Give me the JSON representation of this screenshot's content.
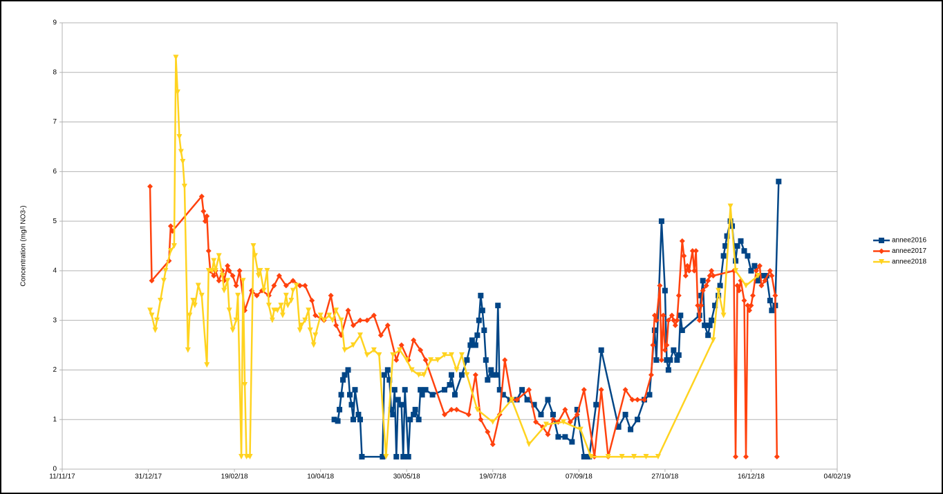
{
  "chart_data": {
    "type": "line",
    "y_label": "Concentration (mg/l NO3-)",
    "xlim": [
      "11/11/17",
      "04/02/19"
    ],
    "xticks": [
      "11/11/17",
      "31/12/17",
      "19/02/18",
      "10/04/18",
      "30/05/18",
      "19/07/18",
      "07/09/18",
      "27/10/18",
      "16/12/18",
      "04/02/19"
    ],
    "ylim": [
      0,
      9
    ],
    "yticks": [
      0,
      1,
      2,
      3,
      4,
      5,
      6,
      7,
      8,
      9
    ],
    "grid": true,
    "legend": "right",
    "series": [
      {
        "name": "annee2016",
        "color": "#004586",
        "marker": "square",
        "x": [
          "18/04/18",
          "20/04/18",
          "21/04/18",
          "22/04/18",
          "23/04/18",
          "24/04/18",
          "26/04/18",
          "27/04/18",
          "28/04/18",
          "29/04/18",
          "30/04/18",
          "02/05/18",
          "03/05/18",
          "04/05/18",
          "16/05/18",
          "17/05/18",
          "19/05/18",
          "20/05/18",
          "21/05/18",
          "22/05/18",
          "23/05/18",
          "24/05/18",
          "25/05/18",
          "27/05/18",
          "28/05/18",
          "29/05/18",
          "31/05/18",
          "01/06/18",
          "03/06/18",
          "04/06/18",
          "06/06/18",
          "07/06/18",
          "08/06/18",
          "10/06/18",
          "14/06/18",
          "21/06/18",
          "24/06/18",
          "25/06/18",
          "27/06/18",
          "01/07/18",
          "04/07/18",
          "06/07/18",
          "07/07/18",
          "09/07/18",
          "10/07/18",
          "11/07/18",
          "12/07/18",
          "13/07/18",
          "14/07/18",
          "15/07/18",
          "16/07/18",
          "18/07/18",
          "19/07/18",
          "21/07/18",
          "22/07/18",
          "23/07/18",
          "25/07/18",
          "29/07/18",
          "02/08/18",
          "05/08/18",
          "08/08/18",
          "12/08/18",
          "16/08/18",
          "20/08/18",
          "23/08/18",
          "26/08/18",
          "30/08/18",
          "03/09/18",
          "06/09/18",
          "10/09/18",
          "13/09/18",
          "17/09/18",
          "20/09/18",
          "30/09/18",
          "04/10/18",
          "07/10/18",
          "11/10/18",
          "15/10/18",
          "18/10/18",
          "21/10/18",
          "22/10/18",
          "25/10/18",
          "27/10/18",
          "28/10/18",
          "29/10/18",
          "30/10/18",
          "01/11/18",
          "03/11/18",
          "04/11/18",
          "05/11/18",
          "06/11/18",
          "16/11/18",
          "17/11/18",
          "18/11/18",
          "19/11/18",
          "21/11/18",
          "22/11/18",
          "23/11/18",
          "25/11/18",
          "27/11/18",
          "28/11/18",
          "30/11/18",
          "01/12/18",
          "02/12/18",
          "04/12/18",
          "05/12/18",
          "07/12/18",
          "08/12/18",
          "10/12/18",
          "12/12/18",
          "14/12/18",
          "16/12/18",
          "18/12/18",
          "20/12/18",
          "21/12/18",
          "23/12/18",
          "25/12/18",
          "27/12/18",
          "28/12/18",
          "30/12/18",
          "01/01/19"
        ],
        "values": [
          1.0,
          0.97,
          1.2,
          1.5,
          1.8,
          1.9,
          2.0,
          1.5,
          1.3,
          1.0,
          1.6,
          1.1,
          1.0,
          0.25,
          0.25,
          1.9,
          2.0,
          1.8,
          1.2,
          1.1,
          1.6,
          0.25,
          1.4,
          1.3,
          0.25,
          1.6,
          0.25,
          1.0,
          1.1,
          1.2,
          1.0,
          1.6,
          1.5,
          1.6,
          1.5,
          1.6,
          1.7,
          1.9,
          1.5,
          1.9,
          2.2,
          2.5,
          2.6,
          2.5,
          2.7,
          3.0,
          3.5,
          3.2,
          2.8,
          2.2,
          1.8,
          2.0,
          1.9,
          1.9,
          3.3,
          1.6,
          1.5,
          1.4,
          1.4,
          1.6,
          1.4,
          1.3,
          1.1,
          1.4,
          1.1,
          0.65,
          0.65,
          0.55,
          1.2,
          0.25,
          0.25,
          1.3,
          2.4,
          0.85,
          1.1,
          0.8,
          1.0,
          1.4,
          1.5,
          2.8,
          2.2,
          5.0,
          3.6,
          2.2,
          2.0,
          2.2,
          2.4,
          2.2,
          2.3,
          3.1,
          2.8,
          3.1,
          3.5,
          3.8,
          2.9,
          2.7,
          2.9,
          3.0,
          3.3,
          3.5,
          3.7,
          4.3,
          4.5,
          4.7,
          5.0,
          4.9,
          4.2,
          4.5,
          4.6,
          4.4,
          4.3,
          4.0,
          4.1,
          3.8,
          3.9,
          3.9,
          3.9,
          3.4,
          3.2,
          3.3,
          5.8
        ]
      },
      {
        "name": "annee2017",
        "color": "#ff420e",
        "marker": "diamond",
        "x": [
          "01/01/18",
          "02/01/18",
          "12/01/18",
          "13/01/18",
          "14/01/18",
          "31/01/18",
          "01/02/18",
          "02/02/18",
          "03/02/18",
          "04/02/18",
          "05/02/18",
          "07/02/18",
          "08/02/18",
          "10/02/18",
          "12/02/18",
          "13/02/18",
          "15/02/18",
          "16/02/18",
          "18/02/18",
          "20/02/18",
          "22/02/18",
          "25/02/18",
          "01/03/18",
          "04/03/18",
          "07/03/18",
          "11/03/18",
          "14/03/18",
          "17/03/18",
          "21/03/18",
          "25/03/18",
          "29/03/18",
          "01/04/18",
          "05/04/18",
          "07/04/18",
          "12/04/18",
          "16/04/18",
          "19/04/18",
          "22/04/18",
          "26/04/18",
          "29/04/18",
          "03/05/18",
          "07/05/18",
          "11/05/18",
          "15/05/18",
          "19/05/18",
          "24/05/18",
          "27/05/18",
          "31/05/18",
          "03/06/18",
          "07/06/18",
          "10/06/18",
          "21/06/18",
          "25/06/18",
          "28/06/18",
          "05/07/18",
          "09/07/18",
          "12/07/18",
          "16/07/18",
          "19/07/18",
          "23/07/18",
          "26/07/18",
          "30/07/18",
          "02/08/18",
          "09/08/18",
          "13/08/18",
          "17/08/18",
          "20/08/18",
          "23/08/18",
          "26/08/18",
          "30/08/18",
          "02/09/18",
          "06/09/18",
          "10/09/18",
          "16/09/18",
          "20/09/18",
          "24/09/18",
          "04/10/18",
          "08/10/18",
          "11/10/18",
          "15/10/18",
          "19/10/18",
          "20/10/18",
          "21/10/18",
          "22/10/18",
          "24/10/18",
          "25/10/18",
          "26/10/18",
          "27/10/18",
          "28/10/18",
          "29/10/18",
          "31/10/18",
          "01/11/18",
          "02/11/18",
          "03/11/18",
          "04/11/18",
          "06/11/18",
          "07/11/18",
          "08/11/18",
          "09/11/18",
          "10/11/18",
          "12/11/18",
          "13/11/18",
          "14/11/18",
          "15/11/18",
          "16/11/18",
          "17/11/18",
          "18/11/18",
          "20/11/18",
          "21/11/18",
          "22/11/18",
          "23/11/18",
          "24/11/18",
          "06/12/18",
          "07/12/18",
          "08/12/18",
          "09/12/18",
          "10/12/18",
          "12/12/18",
          "13/12/18",
          "14/12/18",
          "15/12/18",
          "16/12/18",
          "17/12/18",
          "19/12/18",
          "21/12/18",
          "22/12/18",
          "24/12/18",
          "27/12/18",
          "28/12/18",
          "30/12/18",
          "31/12/18"
        ],
        "values": [
          5.7,
          3.8,
          4.2,
          4.9,
          4.8,
          5.5,
          5.2,
          5.0,
          5.1,
          4.4,
          4.0,
          3.9,
          4.0,
          3.8,
          4.0,
          3.8,
          4.1,
          4.0,
          3.9,
          3.7,
          4.0,
          3.2,
          3.6,
          3.5,
          3.6,
          3.5,
          3.7,
          3.9,
          3.7,
          3.8,
          3.7,
          3.7,
          3.4,
          3.1,
          3.0,
          3.5,
          2.9,
          2.7,
          3.2,
          2.9,
          3.0,
          3.0,
          3.1,
          2.7,
          2.9,
          2.2,
          2.5,
          2.2,
          2.6,
          2.4,
          2.2,
          1.1,
          1.2,
          1.2,
          1.1,
          1.9,
          1.0,
          0.75,
          0.5,
          1.1,
          2.2,
          1.4,
          1.4,
          1.6,
          0.95,
          0.85,
          0.7,
          1.0,
          0.95,
          1.2,
          0.95,
          1.1,
          1.6,
          0.25,
          1.6,
          0.25,
          1.6,
          1.4,
          1.4,
          1.4,
          1.9,
          2.5,
          3.1,
          3.0,
          3.7,
          2.2,
          3.1,
          2.4,
          2.5,
          3.0,
          3.1,
          3.0,
          2.9,
          3.0,
          3.5,
          4.6,
          4.3,
          3.9,
          4.1,
          4.0,
          4.4,
          4.0,
          4.4,
          3.3,
          3.0,
          3.3,
          3.6,
          3.7,
          3.8,
          3.9,
          4.0,
          3.9,
          4.0,
          0.25,
          3.7,
          3.6,
          3.8,
          3.4,
          0.25,
          3.3,
          3.2,
          3.3,
          3.5,
          4.0,
          4.1,
          3.7,
          3.8,
          4.0,
          3.9,
          3.5,
          0.25
        ]
      },
      {
        "name": "annee2018",
        "color": "#ffd320",
        "marker": "triangle-down",
        "x": [
          "01/01/18",
          "02/01/18",
          "04/01/18",
          "05/01/18",
          "07/01/18",
          "09/01/18",
          "10/01/18",
          "13/01/18",
          "15/01/18",
          "16/01/18",
          "17/01/18",
          "18/01/18",
          "19/01/18",
          "20/01/18",
          "21/01/18",
          "23/01/18",
          "24/01/18",
          "26/01/18",
          "27/01/18",
          "29/01/18",
          "31/01/18",
          "03/02/18",
          "04/02/18",
          "06/02/18",
          "07/02/18",
          "08/02/18",
          "10/02/18",
          "12/02/18",
          "13/02/18",
          "15/02/18",
          "16/02/18",
          "18/02/18",
          "20/02/18",
          "21/02/18",
          "23/02/18",
          "24/02/18",
          "25/02/18",
          "26/02/18",
          "28/02/18",
          "02/03/18",
          "03/03/18",
          "05/03/18",
          "06/03/18",
          "08/03/18",
          "10/03/18",
          "11/03/18",
          "13/03/18",
          "14/03/18",
          "16/03/18",
          "18/03/18",
          "19/03/18",
          "21/03/18",
          "22/03/18",
          "24/03/18",
          "25/03/18",
          "27/03/18",
          "29/03/18",
          "30/03/18",
          "01/04/18",
          "03/04/18",
          "04/04/18",
          "06/04/18",
          "07/04/18",
          "10/04/18",
          "12/04/18",
          "15/04/18",
          "17/04/18",
          "19/04/18",
          "22/04/18",
          "24/04/18",
          "29/04/18",
          "03/05/18",
          "07/05/18",
          "11/05/18",
          "14/05/18",
          "18/05/18",
          "22/05/18",
          "26/05/18",
          "30/05/18",
          "02/06/18",
          "06/06/18",
          "09/06/18",
          "13/06/18",
          "17/06/18",
          "21/06/18",
          "25/06/18",
          "28/06/18",
          "01/07/18",
          "04/07/18",
          "10/07/18",
          "19/07/18",
          "30/07/18",
          "09/08/18",
          "19/08/18",
          "29/08/18",
          "08/09/18",
          "14/09/18",
          "24/09/18",
          "02/10/18",
          "09/10/18",
          "16/10/18",
          "23/10/18",
          "24/11/18",
          "27/11/18",
          "30/11/18",
          "04/12/18",
          "07/12/18",
          "13/12/18",
          "20/12/18"
        ],
        "values": [
          3.2,
          3.1,
          2.8,
          3.0,
          3.4,
          3.8,
          4.0,
          4.4,
          4.5,
          8.3,
          7.6,
          6.7,
          6.4,
          6.2,
          5.7,
          2.4,
          3.1,
          3.4,
          3.3,
          3.7,
          3.5,
          2.1,
          4.0,
          4.0,
          4.2,
          4.0,
          4.3,
          3.9,
          3.6,
          3.8,
          3.2,
          2.8,
          3.0,
          3.5,
          0.25,
          3.8,
          1.7,
          0.25,
          0.25,
          4.5,
          4.3,
          3.9,
          4.0,
          3.6,
          4.0,
          3.3,
          3.0,
          3.2,
          3.2,
          3.3,
          3.1,
          3.5,
          3.3,
          3.4,
          3.6,
          3.7,
          2.8,
          2.9,
          3.0,
          3.2,
          2.8,
          2.5,
          2.7,
          3.1,
          3.0,
          3.1,
          3.0,
          3.2,
          3.0,
          2.4,
          2.5,
          2.7,
          2.3,
          2.4,
          2.3,
          0.25,
          2.3,
          2.4,
          2.2,
          2.0,
          1.9,
          1.9,
          2.2,
          2.2,
          2.3,
          2.3,
          2.0,
          2.3,
          1.9,
          1.2,
          0.95,
          1.4,
          0.5,
          0.9,
          0.95,
          0.8,
          0.25,
          0.25,
          0.25,
          0.25,
          0.25,
          0.25,
          2.6,
          3.6,
          3.1,
          5.3,
          4.0,
          3.7,
          3.9
        ]
      }
    ]
  }
}
